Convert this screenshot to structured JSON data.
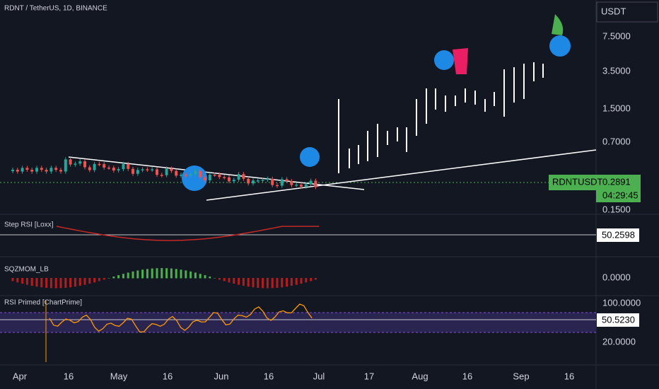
{
  "header": {
    "symbol": "RDNT / TetherUS, 1D, BINANCE",
    "currency": "USDT"
  },
  "price_axis": [
    "7.5000",
    "3.5000",
    "1.5000",
    "0.7000",
    "0.1500"
  ],
  "last_price": {
    "symbol": "RDNTUSDT",
    "price": "0.2891",
    "countdown": "04:29:45"
  },
  "indicators": [
    {
      "name": "Step RSI [Loxx]",
      "value": "50.2598"
    },
    {
      "name": "SQZMOM_LB",
      "value": "0.0000"
    },
    {
      "name": "RSI Primed [ChartPrime]",
      "upper": "100.0000",
      "value": "50.5230",
      "lower": "20.0000"
    }
  ],
  "time_axis": [
    "Apr",
    "16",
    "May",
    "16",
    "Jun",
    "16",
    "Jul",
    "17",
    "Aug",
    "16",
    "Sep",
    "16"
  ]
}
